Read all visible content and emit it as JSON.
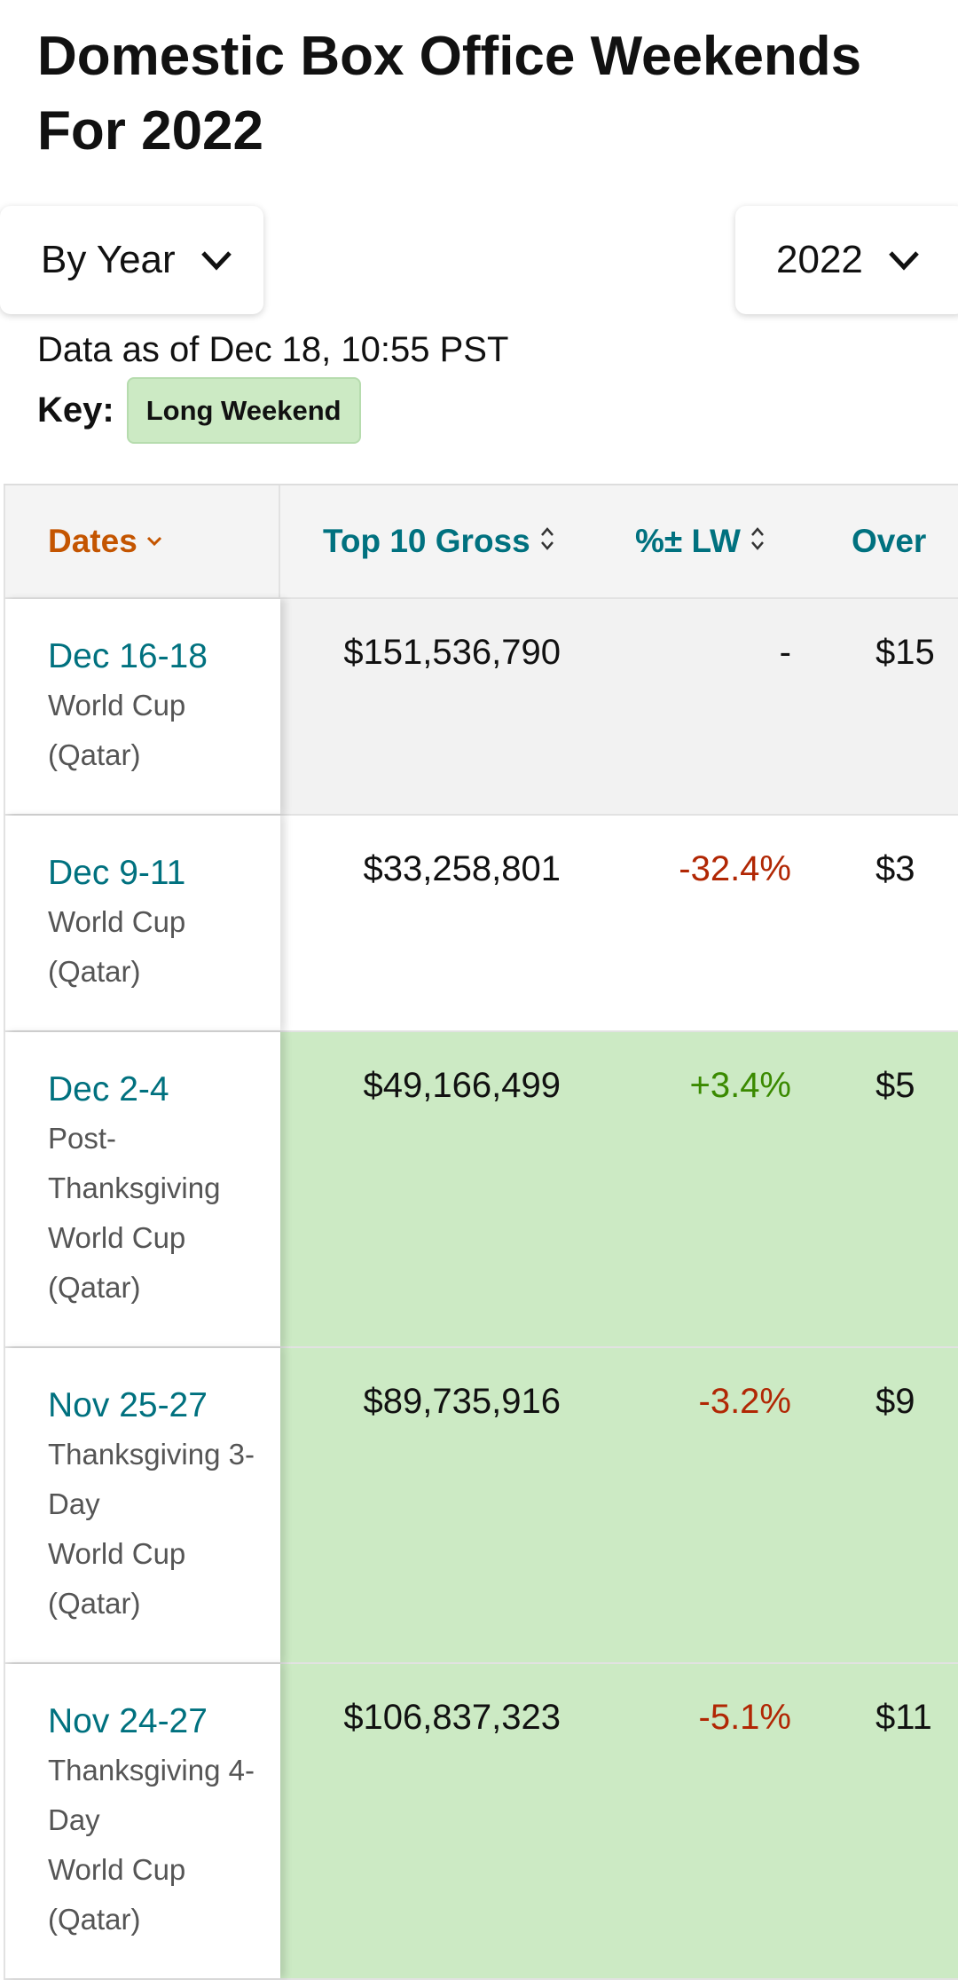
{
  "header": {
    "title": "Domestic Box Office Weekends For 2022"
  },
  "controls": {
    "period": "By Year",
    "year": "2022"
  },
  "info": {
    "data_as_of": "Data as of Dec 18, 10:55 PST",
    "key_label": "Key:",
    "key_badge": "Long Weekend"
  },
  "table": {
    "headers": [
      "Dates",
      "Top 10 Gross",
      "%± LW",
      "Over"
    ],
    "rows": [
      {
        "dates": "Dec 16-18",
        "notes": [
          "World Cup (Qatar)"
        ],
        "gross": "$151,536,790",
        "change": "-",
        "overall": "$15",
        "long_weekend": false
      },
      {
        "dates": "Dec 9-11",
        "notes": [
          "World Cup (Qatar)"
        ],
        "gross": "$33,258,801",
        "change": "-32.4%",
        "overall": "$3",
        "long_weekend": false
      },
      {
        "dates": "Dec 2-4",
        "notes": [
          "Post-Thanksgiving",
          "World Cup (Qatar)"
        ],
        "gross": "$49,166,499",
        "change": "+3.4%",
        "overall": "$5",
        "long_weekend": true
      },
      {
        "dates": "Nov 25-27",
        "notes": [
          "Thanksgiving 3-Day",
          "World Cup (Qatar)"
        ],
        "gross": "$89,735,916",
        "change": "-3.2%",
        "overall": "$9",
        "long_weekend": true
      },
      {
        "dates": "Nov 24-27",
        "notes": [
          "Thanksgiving 4-Day",
          "World Cup (Qatar)"
        ],
        "gross": "$106,837,323",
        "change": "-5.1%",
        "overall": "$11",
        "long_weekend": true
      }
    ]
  }
}
